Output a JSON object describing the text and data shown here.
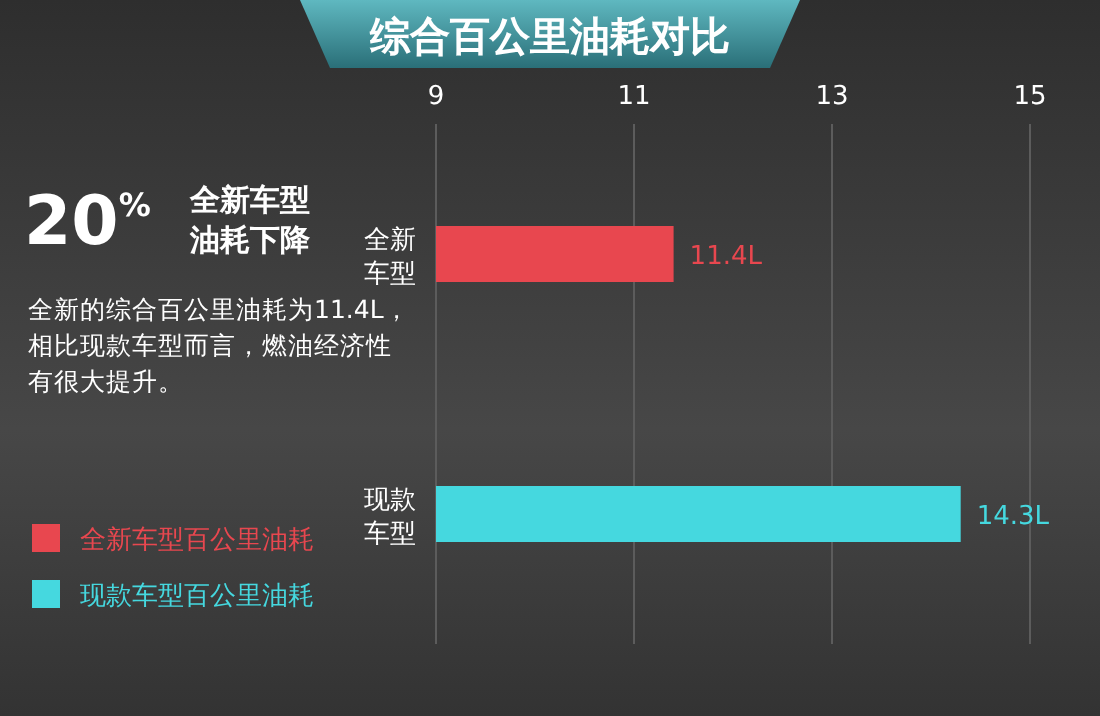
{
  "chart_data": {
    "type": "bar",
    "orientation": "horizontal",
    "title": "综合百公里油耗对比",
    "categories": [
      "全新车型",
      "现款车型"
    ],
    "series": [
      {
        "name": "全新车型百公里油耗",
        "color": "#e8474f",
        "values": [
          11.4,
          null
        ],
        "value_labels": [
          "11.4L",
          null
        ]
      },
      {
        "name": "现款车型百公里油耗",
        "color": "#45d8df",
        "values": [
          null,
          14.3
        ],
        "value_labels": [
          null,
          "14.3L"
        ]
      }
    ],
    "xlim": [
      9,
      15
    ],
    "xticks": [
      9,
      11,
      13,
      15
    ],
    "grid": "x",
    "legend": "bottom left",
    "annotations": [
      "20$^{%}$",
      "全新车型油耗下降",
      "全新的综合百公里油耗为11.4L，相比现款车型而言，燃油经济性有很大提升。"
    ]
  }
}
